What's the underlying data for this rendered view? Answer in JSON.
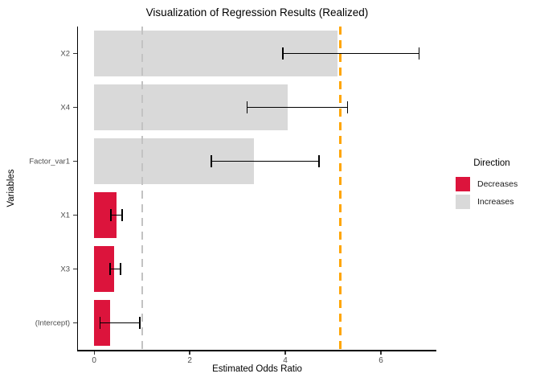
{
  "chart_data": {
    "type": "bar",
    "orientation": "horizontal",
    "title": "Visualization of Regression Results (Realized)",
    "xlabel": "Estimated Odds Ratio",
    "ylabel": "Variables",
    "xlim": [
      -0.34,
      7.16
    ],
    "x_ticks": [
      0,
      2,
      4,
      6
    ],
    "grid": false,
    "categories": [
      "X2",
      "X4",
      "Factor_var1",
      "X1",
      "X3",
      "(Intercept)"
    ],
    "bars": [
      {
        "label": "X2",
        "value": 5.1,
        "ci_low": 3.95,
        "ci_high": 6.8,
        "direction": "Increases"
      },
      {
        "label": "X4",
        "value": 4.05,
        "ci_low": 3.2,
        "ci_high": 5.3,
        "direction": "Increases"
      },
      {
        "label": "Factor_var1",
        "value": 3.35,
        "ci_low": 2.45,
        "ci_high": 4.7,
        "direction": "Increases"
      },
      {
        "label": "X1",
        "value": 0.46,
        "ci_low": 0.35,
        "ci_high": 0.58,
        "direction": "Decreases"
      },
      {
        "label": "X3",
        "value": 0.42,
        "ci_low": 0.33,
        "ci_high": 0.55,
        "direction": "Decreases"
      },
      {
        "label": "(Intercept)",
        "value": 0.33,
        "ci_low": 0.12,
        "ci_high": 0.95,
        "direction": "Decreases"
      }
    ],
    "ref_lines": [
      {
        "name": "null-effect-line",
        "value": 1.0,
        "color": "#C3C3C3",
        "style": "dashed",
        "width": 2
      },
      {
        "name": "highlight-line",
        "value": 5.15,
        "color": "#FFA500",
        "style": "dashed",
        "width": 3
      }
    ],
    "legend": {
      "title": "Direction",
      "position": "right",
      "items": [
        {
          "label": "Decreases",
          "color": "#DC143C"
        },
        {
          "label": "Increases",
          "color": "#D9D9D9"
        }
      ]
    },
    "colors": {
      "Decreases": "#DC143C",
      "Increases": "#D9D9D9",
      "axis_text": "#4D4D4D",
      "axis_line": "#000000"
    }
  }
}
